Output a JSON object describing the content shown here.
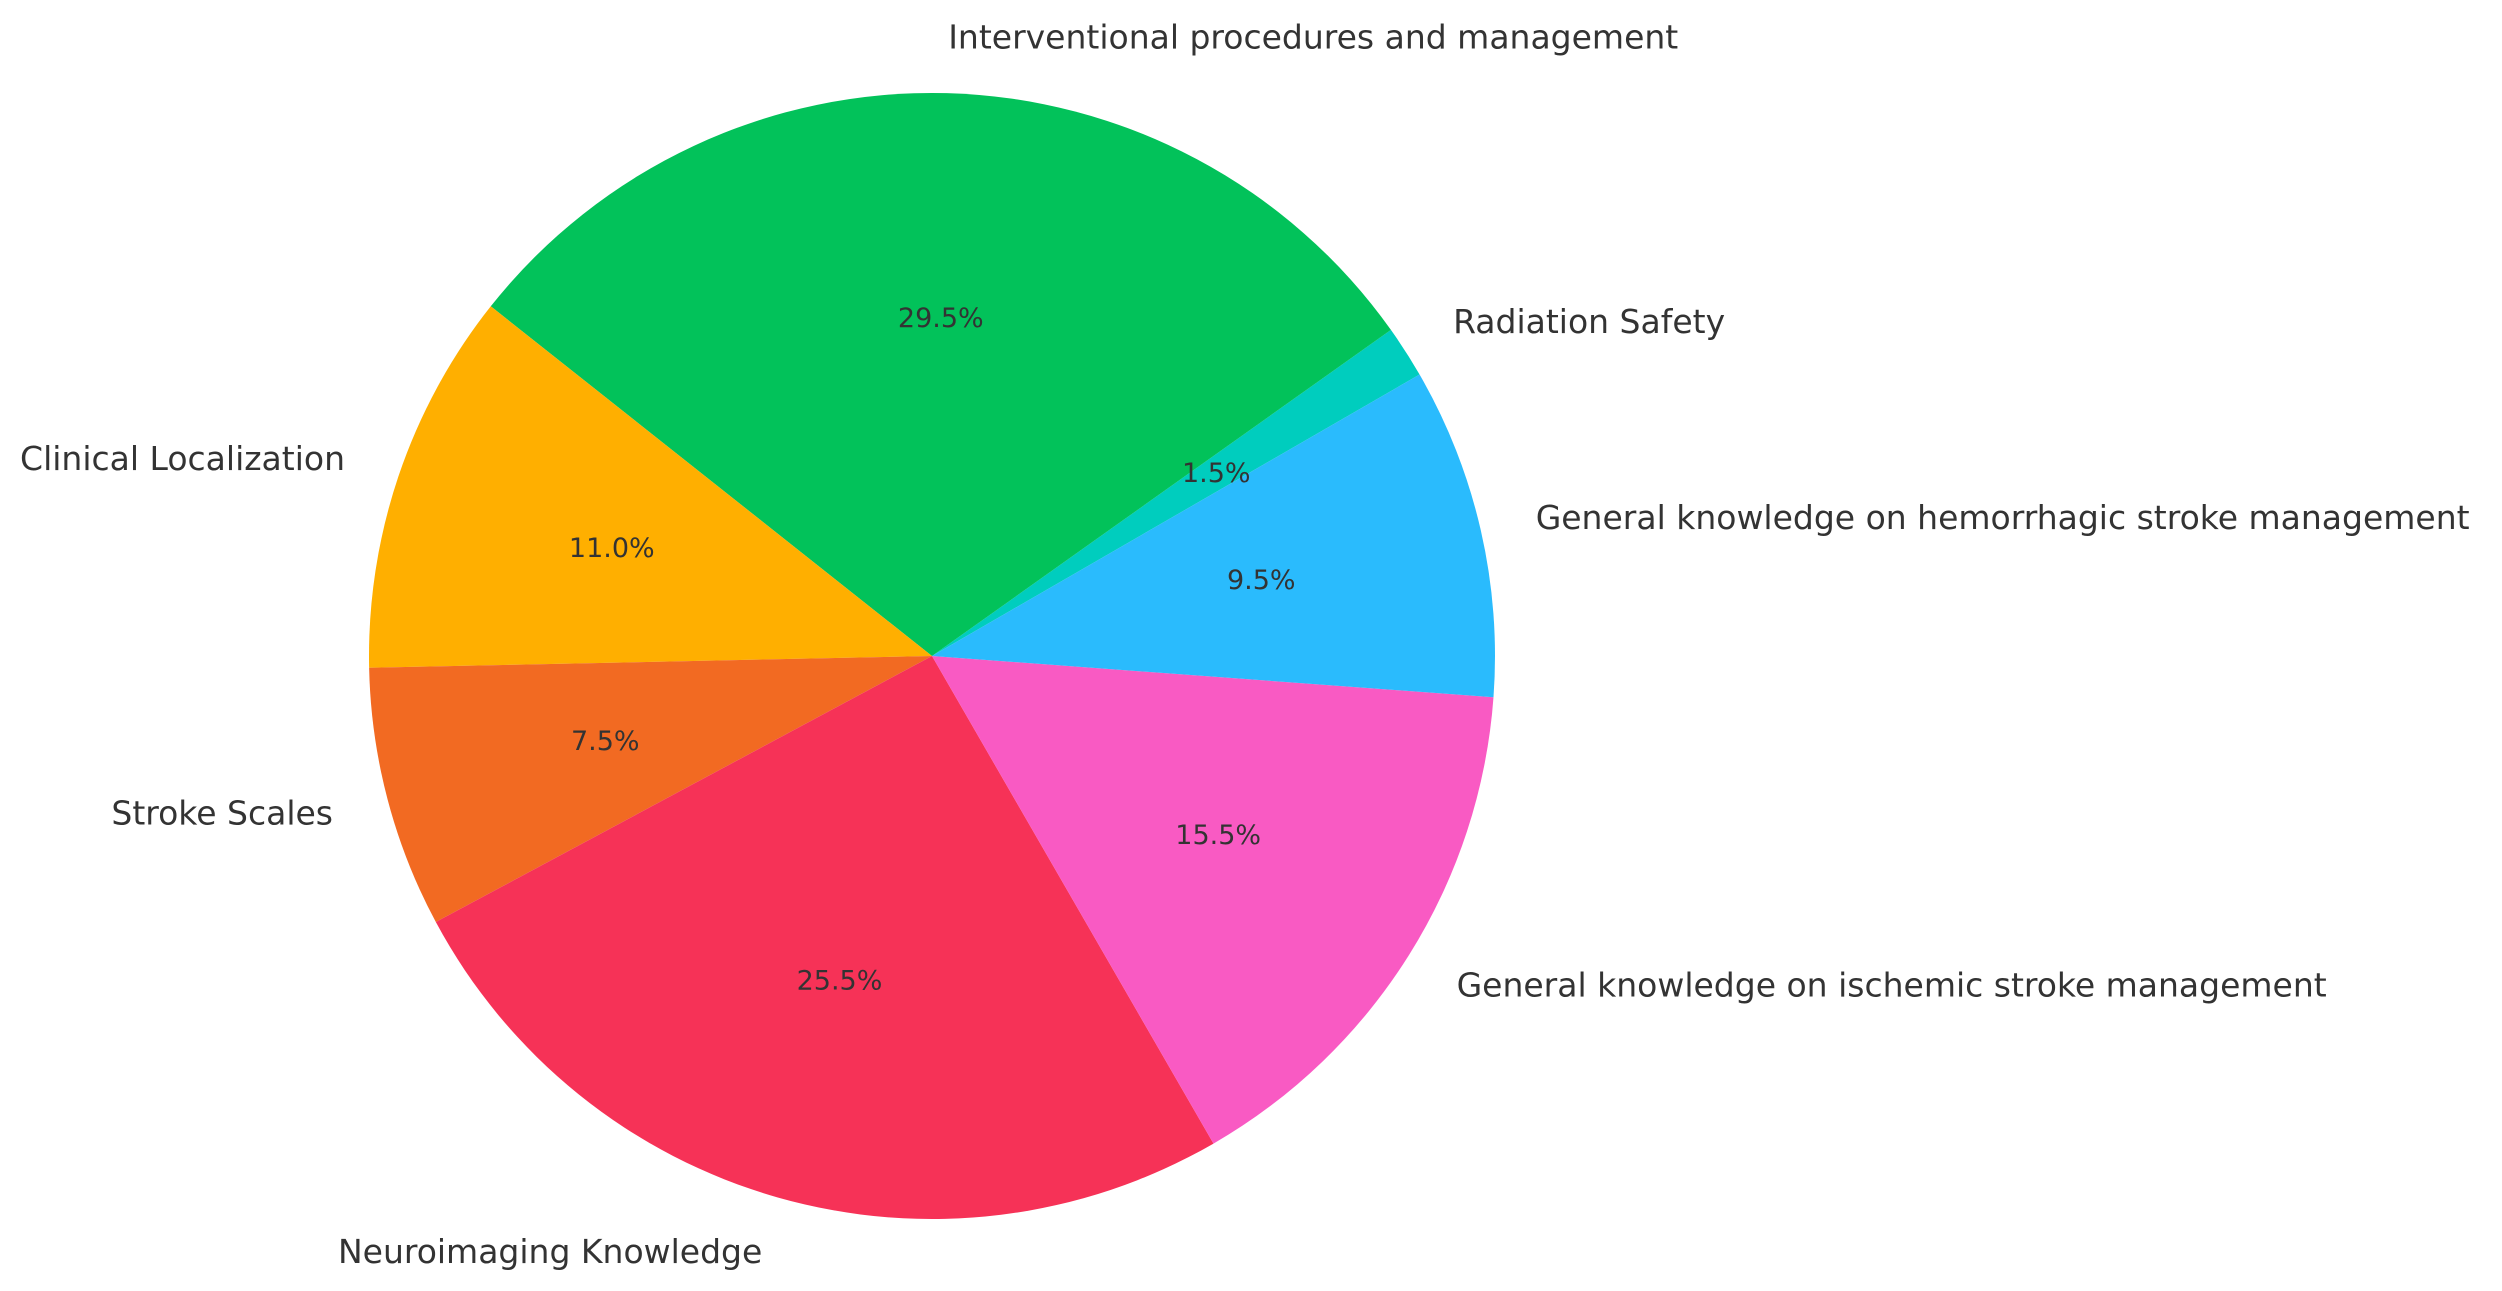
{
  "chart_data": {
    "type": "pie",
    "title": "",
    "start_angle_deg": 30,
    "direction": "counterclockwise",
    "slices": [
      {
        "label": "Radiation Safety",
        "value": 1.5,
        "pct_label": "1.5%",
        "color": "#00CDBE"
      },
      {
        "label": "Interventional procedures and management",
        "value": 29.5,
        "pct_label": "29.5%",
        "color": "#02C25A"
      },
      {
        "label": "Clinical Localization",
        "value": 11.0,
        "pct_label": "11.0%",
        "color": "#FFAF00"
      },
      {
        "label": "Stroke Scales",
        "value": 7.5,
        "pct_label": "7.5%",
        "color": "#F26A22"
      },
      {
        "label": "Neuroimaging Knowledge",
        "value": 25.5,
        "pct_label": "25.5%",
        "color": "#F63257"
      },
      {
        "label": "General knowledge on ischemic stroke management",
        "value": 15.5,
        "pct_label": "15.5%",
        "color": "#F95AC3"
      },
      {
        "label": "General knowledge on hemorrhagic stroke management",
        "value": 9.5,
        "pct_label": "9.5%",
        "color": "#2ABBFD"
      }
    ]
  }
}
